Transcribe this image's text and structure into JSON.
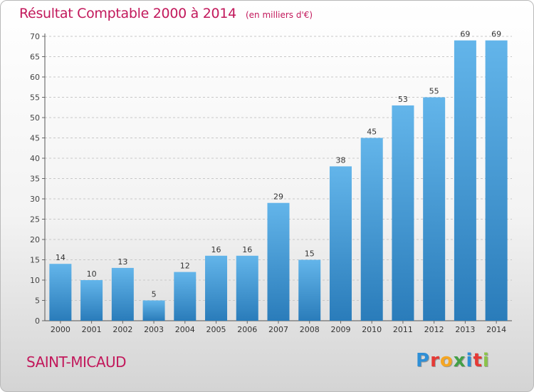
{
  "header": {
    "title": "Résultat Comptable 2000 à 2014",
    "unit": "(en milliers d'€)"
  },
  "footer": {
    "commune": "SAINT-MICAUD",
    "logo_letters": [
      "P",
      "r",
      "o",
      "x",
      "i",
      "t",
      "i"
    ],
    "logo_colors": [
      "#2f8fd6",
      "#e53935",
      "#f5a623",
      "#43a047",
      "#2f8fd6",
      "#e53935",
      "#8bc34a"
    ]
  },
  "colors": {
    "bar_top": "#63b5ea",
    "bar_bottom": "#2a7cba",
    "title": "#c2185b",
    "grid": "#c8c8c8"
  },
  "chart_data": {
    "type": "bar",
    "categories": [
      "2000",
      "2001",
      "2002",
      "2003",
      "2004",
      "2005",
      "2006",
      "2007",
      "2008",
      "2009",
      "2010",
      "2011",
      "2012",
      "2013",
      "2014"
    ],
    "values": [
      14,
      10,
      13,
      5,
      12,
      16,
      16,
      29,
      15,
      38,
      45,
      53,
      55,
      69,
      69
    ],
    "ylim": [
      0,
      70
    ],
    "yticks": [
      0,
      5,
      10,
      15,
      20,
      25,
      30,
      35,
      40,
      45,
      50,
      55,
      60,
      65,
      70
    ],
    "grid": true,
    "data_labels": true
  }
}
